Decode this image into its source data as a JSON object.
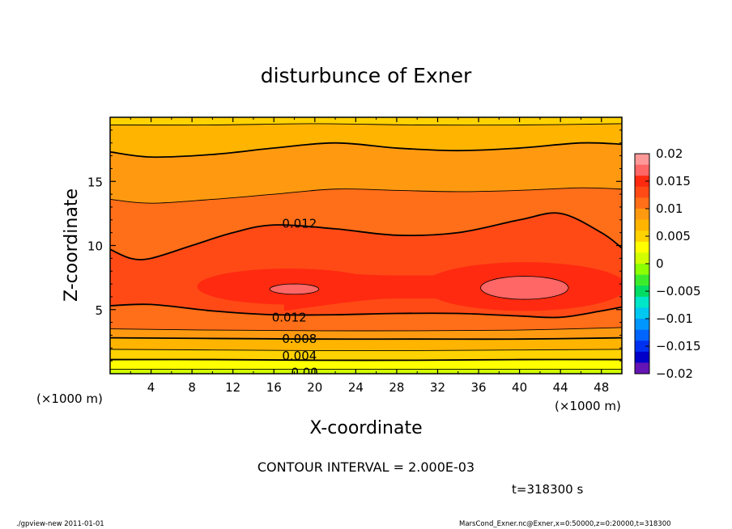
{
  "chart_data": {
    "type": "heatmap",
    "title": "disturbunce of Exner",
    "xlabel": "X-coordinate",
    "ylabel": "Z-coordinate",
    "x_unit_left": "(×1000 m)",
    "x_unit_right": "(×1000 m)",
    "xlim": [
      0,
      50
    ],
    "ylim": [
      0,
      20
    ],
    "x_ticks": [
      4,
      8,
      12,
      16,
      20,
      24,
      28,
      32,
      36,
      40,
      44,
      48
    ],
    "y_ticks": [
      5,
      10,
      15
    ],
    "contour_interval_text": "CONTOUR INTERVAL = 2.000E-03",
    "time_text": "t=318300 s",
    "footer_left": "./gpview-new   2011-01-01",
    "footer_right": "MarsCond_Exner.nc@Exner,x=0:50000,z=0:20000,t=318300",
    "colorbar": {
      "ticks": [
        "0.02",
        "0.015",
        "0.01",
        "0.005",
        "0",
        "−0.005",
        "−0.01",
        "−0.015",
        "−0.02"
      ],
      "tick_values": [
        0.02,
        0.015,
        0.01,
        0.005,
        0,
        -0.005,
        -0.01,
        -0.015,
        -0.02
      ],
      "levels": [
        0.02,
        0.018,
        0.016,
        0.014,
        0.012,
        0.01,
        0.008,
        0.006,
        0.004,
        0.002,
        0,
        -0.002,
        -0.004,
        -0.006,
        -0.008,
        -0.01,
        -0.012,
        -0.014,
        -0.016,
        -0.018,
        -0.02
      ],
      "colors": [
        "#ff9999",
        "#ff6666",
        "#ff2a10",
        "#ff4a16",
        "#ff6e18",
        "#ff9a10",
        "#ffb400",
        "#ffd200",
        "#ffff00",
        "#d2ff00",
        "#8cff00",
        "#3cec2c",
        "#00dc64",
        "#00e6c8",
        "#00c8f0",
        "#0096ff",
        "#0064ff",
        "#0030f0",
        "#0000c8",
        "#6414b4"
      ]
    },
    "contour_labels": [
      {
        "text": "0.012",
        "x": 18.5,
        "z": 11.7
      },
      {
        "text": "0.012",
        "x": 17.5,
        "z": 4.4
      },
      {
        "text": "0.008",
        "x": 18.5,
        "z": 2.7
      },
      {
        "text": "0.004",
        "x": 18.5,
        "z": 1.4
      },
      {
        "text": "0.00",
        "x": 19.0,
        "z": 0.1
      }
    ],
    "fields": {
      "band_boundaries_z": [
        {
          "value": 0.002,
          "x": [
            0,
            10,
            20,
            30,
            40,
            50
          ],
          "z": [
            0.35,
            0.35,
            0.35,
            0.35,
            0.35,
            0.35
          ]
        },
        {
          "value": 0.004,
          "x": [
            0,
            10,
            20,
            30,
            40,
            50
          ],
          "z": [
            1.1,
            1.1,
            1.05,
            1.05,
            1.1,
            1.1
          ]
        },
        {
          "value": 0.006,
          "x": [
            0,
            10,
            20,
            30,
            40,
            50
          ],
          "z": [
            1.9,
            1.85,
            1.8,
            1.8,
            1.85,
            1.9
          ]
        },
        {
          "value": 0.008,
          "x": [
            0,
            10,
            20,
            30,
            40,
            50
          ],
          "z": [
            2.8,
            2.75,
            2.7,
            2.7,
            2.7,
            2.8
          ]
        },
        {
          "value": 0.01,
          "x": [
            0,
            10,
            20,
            30,
            40,
            50
          ],
          "z": [
            3.5,
            3.4,
            3.35,
            3.35,
            3.4,
            3.6
          ]
        },
        {
          "value": 0.012,
          "x": [
            0,
            4,
            10,
            16,
            22,
            28,
            34,
            40,
            44,
            48,
            50
          ],
          "z": [
            5.3,
            5.4,
            4.9,
            4.6,
            4.6,
            4.7,
            4.7,
            4.5,
            4.4,
            4.9,
            5.2
          ]
        },
        {
          "value": 0.012,
          "x": [
            0,
            2,
            4,
            8,
            12,
            16,
            22,
            28,
            34,
            40,
            44,
            48,
            50
          ],
          "z": [
            9.7,
            9.0,
            9.0,
            10.0,
            11.0,
            11.6,
            11.3,
            10.8,
            11.0,
            12.0,
            12.5,
            11.0,
            9.8
          ]
        },
        {
          "value": 0.01,
          "x": [
            0,
            4,
            10,
            16,
            22,
            28,
            34,
            40,
            46,
            50
          ],
          "z": [
            13.6,
            13.3,
            13.6,
            14.0,
            14.4,
            14.3,
            14.2,
            14.3,
            14.5,
            14.4
          ]
        },
        {
          "value": 0.008,
          "x": [
            0,
            4,
            10,
            16,
            22,
            28,
            34,
            40,
            46,
            50
          ],
          "z": [
            17.3,
            16.9,
            17.1,
            17.6,
            18.0,
            17.6,
            17.4,
            17.6,
            18.0,
            17.9
          ]
        },
        {
          "value": 0.006,
          "x": [
            0,
            10,
            20,
            30,
            40,
            50
          ],
          "z": [
            19.4,
            19.4,
            19.5,
            19.4,
            19.4,
            19.5
          ]
        }
      ]
    }
  }
}
